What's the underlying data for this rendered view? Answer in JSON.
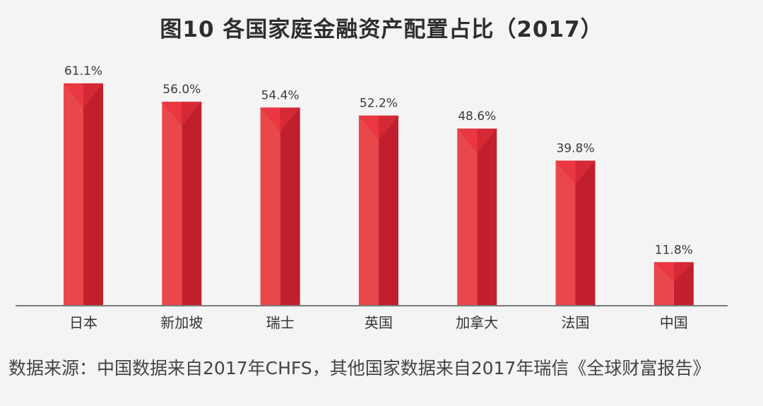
{
  "chart_data": {
    "type": "bar",
    "title": "图10 各国家庭金融资产配置占比（2017）",
    "categories": [
      "日本",
      "新加坡",
      "瑞士",
      "英国",
      "加拿大",
      "法国",
      "中国"
    ],
    "values": [
      61.1,
      56.0,
      54.4,
      52.2,
      48.6,
      39.8,
      11.8
    ],
    "value_labels": [
      "61.1%",
      "56.0%",
      "54.4%",
      "52.2%",
      "48.6%",
      "39.8%",
      "11.8%"
    ],
    "unit": "%",
    "xlabel": "",
    "ylabel": "",
    "ylim": [
      0,
      61.1
    ],
    "grid": false,
    "legend": "none",
    "colors": {
      "bar_left": "#e8474b",
      "bar_right": "#c11f2d",
      "bar_triangle": "#d52a36",
      "bar_cap": "#ef3a43",
      "axis": "#7a7a7a"
    }
  },
  "source_note": "数据来源：中国数据来自2017年CHFS，其他国家数据来自2017年瑞信《全球财富报告》"
}
